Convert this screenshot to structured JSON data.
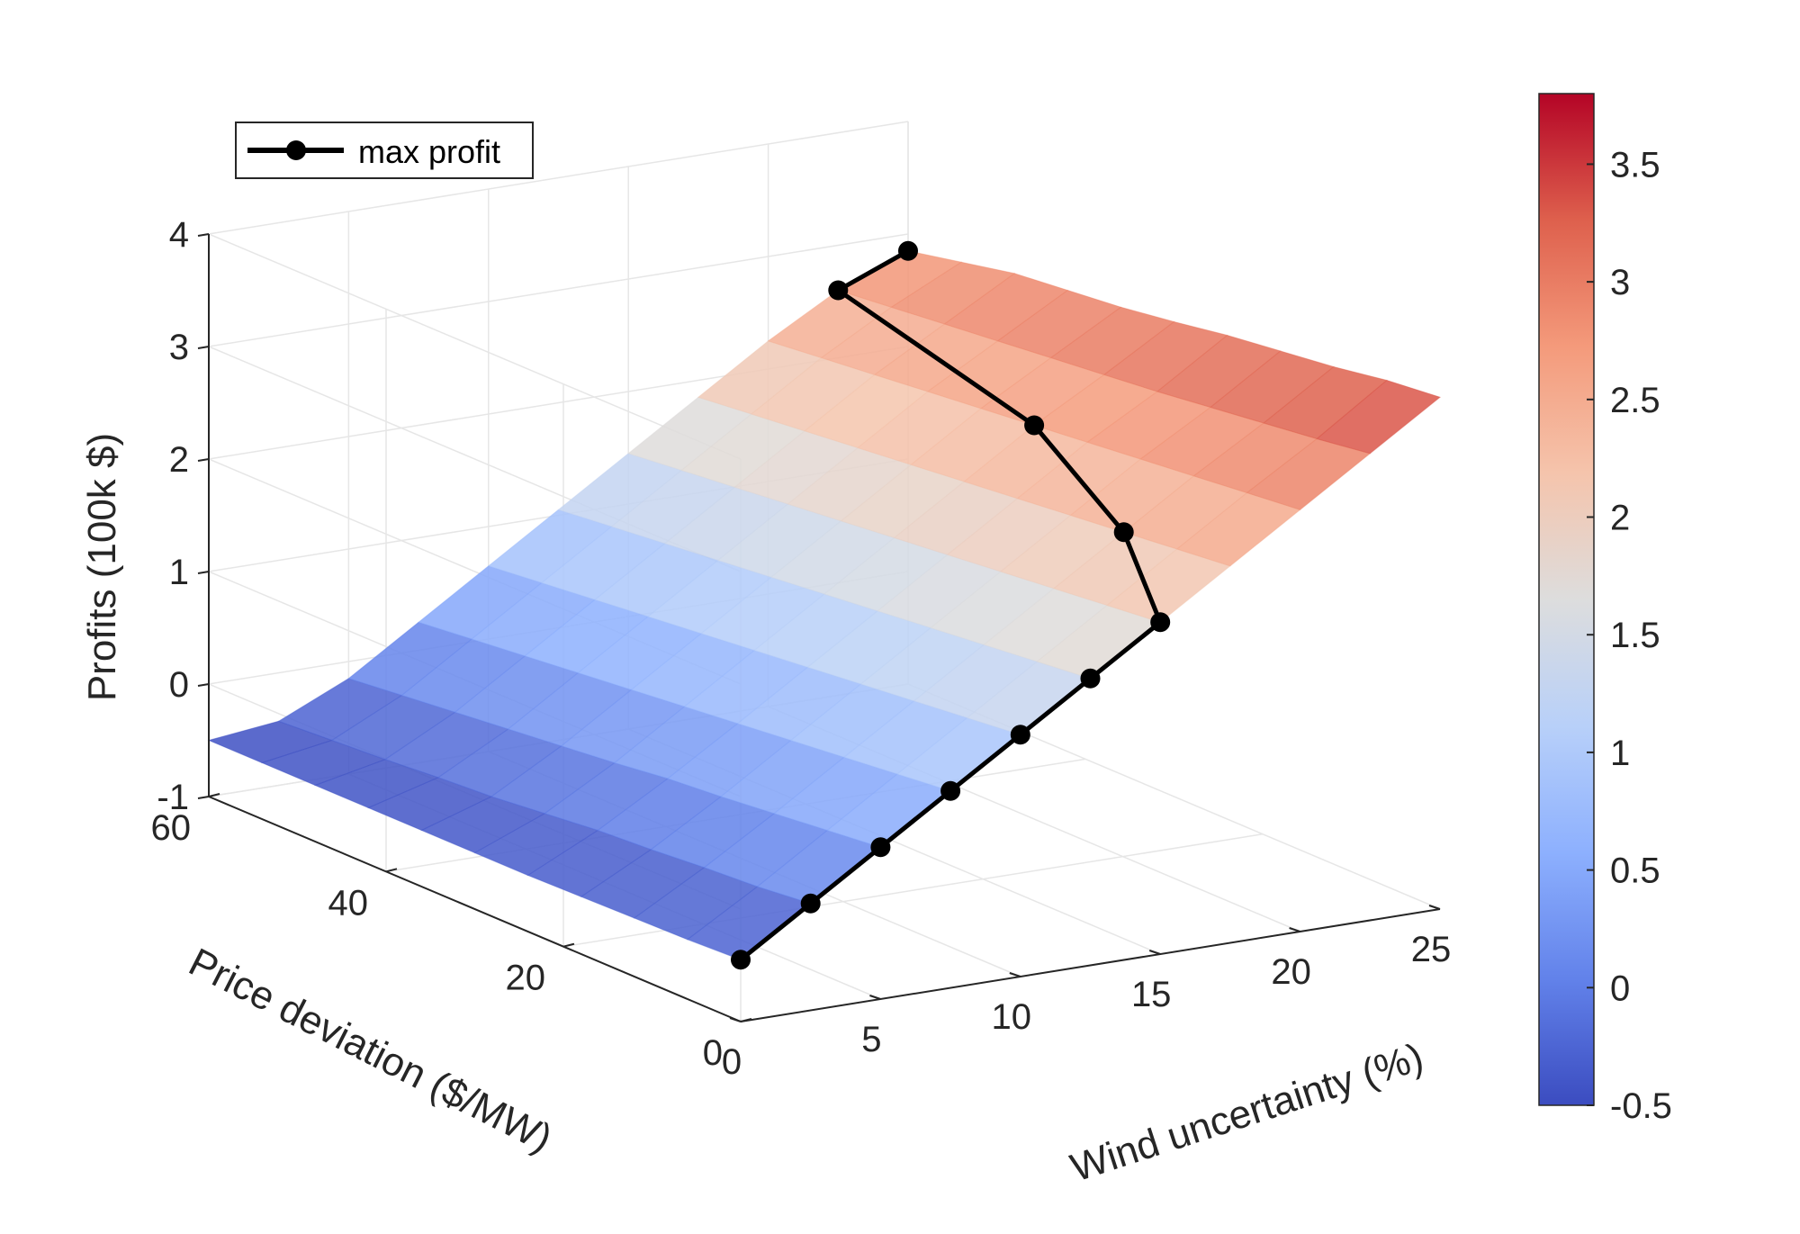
{
  "chart_data": {
    "type": "surface",
    "xlabel": "Wind uncertainty (%)",
    "ylabel": "Price deviation ($/MW)",
    "zlabel": "Profits (100k $)",
    "xlim": [
      0,
      25
    ],
    "ylim": [
      0,
      60
    ],
    "zlim": [
      -1,
      4
    ],
    "xticks": [
      "0",
      "5",
      "10",
      "15",
      "20",
      "25"
    ],
    "yticks": [
      "0",
      "20",
      "40",
      "60"
    ],
    "zticks": [
      "-1",
      "0",
      "1",
      "2",
      "3",
      "4"
    ],
    "grid": true,
    "legend": {
      "position": "top-left",
      "entries": [
        "max profit"
      ]
    },
    "colorbar": {
      "range": [
        -0.5,
        3.8
      ],
      "ticks": [
        "-0.5",
        "0",
        "0.5",
        "1",
        "1.5",
        "2",
        "2.5",
        "3",
        "3.5"
      ],
      "colormap": [
        "#3b4cc0",
        "#6282ea",
        "#8db0fe",
        "#b8d0f9",
        "#dddddd",
        "#f5c4ac",
        "#f49a7b",
        "#de604d",
        "#b40426"
      ]
    },
    "surface_x": [
      0,
      2.5,
      5,
      7.5,
      10,
      12.5,
      15,
      17.5,
      20,
      22.5,
      25
    ],
    "surface_y": [
      0,
      6,
      12,
      18,
      24,
      30,
      36,
      42,
      48,
      54,
      60
    ],
    "surface_z": [
      [
        -0.45,
        -0.05,
        0.35,
        0.75,
        1.15,
        1.55,
        1.95,
        2.35,
        2.75,
        3.15,
        3.55
      ],
      [
        -0.47,
        -0.1,
        0.3,
        0.7,
        1.1,
        1.5,
        1.9,
        2.3,
        2.7,
        3.08,
        3.5
      ],
      [
        -0.48,
        -0.13,
        0.25,
        0.65,
        1.05,
        1.45,
        1.85,
        2.25,
        2.65,
        3.02,
        3.42
      ],
      [
        -0.49,
        -0.17,
        0.2,
        0.6,
        1.0,
        1.4,
        1.8,
        2.2,
        2.6,
        2.96,
        3.36
      ],
      [
        -0.5,
        -0.2,
        0.16,
        0.55,
        0.95,
        1.35,
        1.75,
        2.15,
        2.55,
        2.9,
        3.3
      ],
      [
        -0.5,
        -0.25,
        0.1,
        0.5,
        0.9,
        1.3,
        1.7,
        2.1,
        2.5,
        2.85,
        3.22
      ],
      [
        -0.5,
        -0.3,
        0.05,
        0.45,
        0.85,
        1.25,
        1.65,
        2.05,
        2.45,
        2.8,
        3.15
      ],
      [
        -0.5,
        -0.33,
        0.0,
        0.4,
        0.8,
        1.2,
        1.6,
        2.0,
        2.4,
        2.75,
        3.1
      ],
      [
        -0.5,
        -0.37,
        -0.05,
        0.35,
        0.75,
        1.15,
        1.55,
        1.95,
        2.35,
        2.7,
        3.05
      ],
      [
        -0.5,
        -0.4,
        -0.1,
        0.3,
        0.7,
        1.1,
        1.5,
        1.9,
        2.3,
        2.65,
        2.95
      ],
      [
        -0.5,
        -0.43,
        -0.15,
        0.25,
        0.65,
        1.05,
        1.45,
        1.85,
        2.25,
        2.6,
        2.85
      ]
    ],
    "series": [
      {
        "name": "max profit",
        "points": [
          {
            "x": 0,
            "y": 0,
            "z": -0.45
          },
          {
            "x": 2.5,
            "y": 0,
            "z": -0.05
          },
          {
            "x": 5,
            "y": 0,
            "z": 0.35
          },
          {
            "x": 7.5,
            "y": 0,
            "z": 0.75
          },
          {
            "x": 10,
            "y": 0,
            "z": 1.15
          },
          {
            "x": 12.5,
            "y": 0,
            "z": 1.55
          },
          {
            "x": 15,
            "y": 0,
            "z": 1.95
          },
          {
            "x": 17.5,
            "y": 12,
            "z": 2.25
          },
          {
            "x": 20,
            "y": 30,
            "z": 2.5
          },
          {
            "x": 22.5,
            "y": 60,
            "z": 2.6
          },
          {
            "x": 25,
            "y": 60,
            "z": 2.85
          }
        ]
      }
    ]
  }
}
